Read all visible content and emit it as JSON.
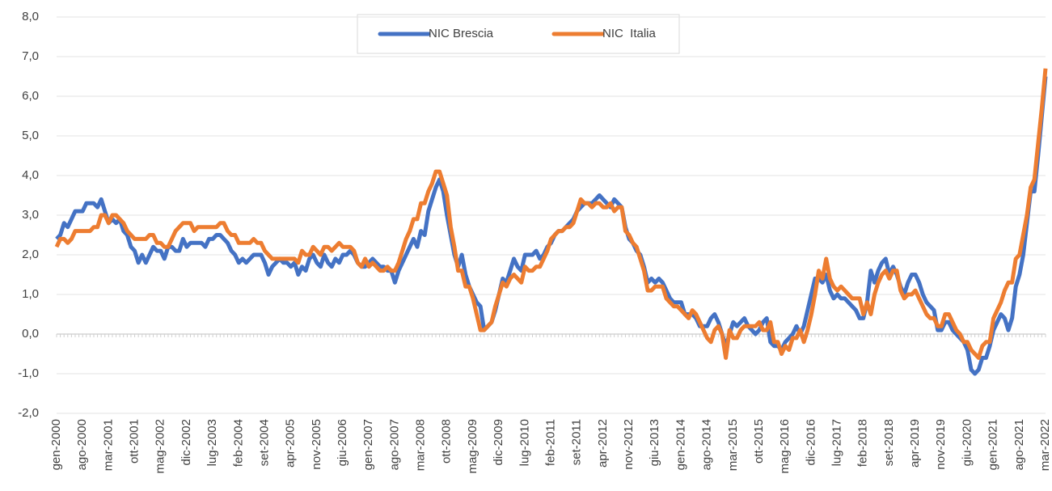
{
  "chart_data": {
    "type": "line",
    "categories": [
      "gen-2000",
      null,
      null,
      null,
      null,
      null,
      null,
      "ago-2000",
      null,
      null,
      null,
      null,
      null,
      null,
      "mar-2001",
      null,
      null,
      null,
      null,
      null,
      null,
      "ott-2001",
      null,
      null,
      null,
      null,
      null,
      null,
      "mag-2002",
      null,
      null,
      null,
      null,
      null,
      null,
      "dic-2002",
      null,
      null,
      null,
      null,
      null,
      null,
      "lug-2003",
      null,
      null,
      null,
      null,
      null,
      null,
      "feb-2004",
      null,
      null,
      null,
      null,
      null,
      null,
      "set-2004",
      null,
      null,
      null,
      null,
      null,
      null,
      "apr-2005",
      null,
      null,
      null,
      null,
      null,
      null,
      "nov-2005",
      null,
      null,
      null,
      null,
      null,
      null,
      "giu-2006",
      null,
      null,
      null,
      null,
      null,
      null,
      "gen-2007",
      null,
      null,
      null,
      null,
      null,
      null,
      "ago-2007",
      null,
      null,
      null,
      null,
      null,
      null,
      "mar-2008",
      null,
      null,
      null,
      null,
      null,
      null,
      "ott-2008",
      null,
      null,
      null,
      null,
      null,
      null,
      "mag-2009",
      null,
      null,
      null,
      null,
      null,
      null,
      "dic-2009",
      null,
      null,
      null,
      null,
      null,
      null,
      "lug-2010",
      null,
      null,
      null,
      null,
      null,
      null,
      "feb-2011",
      null,
      null,
      null,
      null,
      null,
      null,
      "set-2011",
      null,
      null,
      null,
      null,
      null,
      null,
      "apr-2012",
      null,
      null,
      null,
      null,
      null,
      null,
      "nov-2012",
      null,
      null,
      null,
      null,
      null,
      null,
      "giu-2013",
      null,
      null,
      null,
      null,
      null,
      null,
      "gen-2014",
      null,
      null,
      null,
      null,
      null,
      null,
      "ago-2014",
      null,
      null,
      null,
      null,
      null,
      null,
      "mar-2015",
      null,
      null,
      null,
      null,
      null,
      null,
      "ott-2015",
      null,
      null,
      null,
      null,
      null,
      null,
      "mag-2016",
      null,
      null,
      null,
      null,
      null,
      null,
      "dic-2016",
      null,
      null,
      null,
      null,
      null,
      null,
      "lug-2017",
      null,
      null,
      null,
      null,
      null,
      null,
      "feb-2018",
      null,
      null,
      null,
      null,
      null,
      null,
      "set-2018",
      null,
      null,
      null,
      null,
      null,
      null,
      "apr-2019",
      null,
      null,
      null,
      null,
      null,
      null,
      "nov-2019",
      null,
      null,
      null,
      null,
      null,
      null,
      "giu-2020",
      null,
      null,
      null,
      null,
      null,
      null,
      "gen-2021",
      null,
      null,
      null,
      null,
      null,
      null,
      "ago-2021",
      null,
      null,
      null,
      null,
      null,
      null,
      "mar-2022"
    ],
    "series": [
      {
        "name": "NIC Brescia",
        "color": "#4472c4",
        "values": [
          2.4,
          2.5,
          2.8,
          2.7,
          2.9,
          3.1,
          3.1,
          3.1,
          3.3,
          3.3,
          3.3,
          3.2,
          3.4,
          3.1,
          2.8,
          2.9,
          2.8,
          2.9,
          2.6,
          2.5,
          2.2,
          2.1,
          1.8,
          2.0,
          1.8,
          2.0,
          2.2,
          2.1,
          2.1,
          1.9,
          2.2,
          2.2,
          2.1,
          2.1,
          2.4,
          2.2,
          2.3,
          2.3,
          2.3,
          2.3,
          2.2,
          2.4,
          2.4,
          2.5,
          2.5,
          2.4,
          2.3,
          2.1,
          2.0,
          1.8,
          1.9,
          1.8,
          1.9,
          2.0,
          2.0,
          2.0,
          1.8,
          1.5,
          1.7,
          1.8,
          1.9,
          1.8,
          1.8,
          1.7,
          1.8,
          1.5,
          1.7,
          1.6,
          1.9,
          2.0,
          1.8,
          1.7,
          2.0,
          1.8,
          1.7,
          1.9,
          1.8,
          2.0,
          2.0,
          2.1,
          2.0,
          1.8,
          1.7,
          1.7,
          1.8,
          1.9,
          1.8,
          1.7,
          1.7,
          1.6,
          1.6,
          1.3,
          1.6,
          1.8,
          2.0,
          2.2,
          2.4,
          2.2,
          2.6,
          2.5,
          3.1,
          3.4,
          3.7,
          3.9,
          3.6,
          3.0,
          2.5,
          2.0,
          1.7,
          2.0,
          1.5,
          1.2,
          1.0,
          0.8,
          0.7,
          0.1,
          0.2,
          0.3,
          0.6,
          1.0,
          1.4,
          1.3,
          1.6,
          1.9,
          1.7,
          1.6,
          2.0,
          2.0,
          2.0,
          2.1,
          1.9,
          2.0,
          2.2,
          2.3,
          2.5,
          2.6,
          2.6,
          2.7,
          2.8,
          2.9,
          3.1,
          3.2,
          3.3,
          3.3,
          3.3,
          3.4,
          3.5,
          3.4,
          3.3,
          3.2,
          3.4,
          3.3,
          3.2,
          2.7,
          2.4,
          2.3,
          2.1,
          2.0,
          1.7,
          1.3,
          1.4,
          1.3,
          1.4,
          1.3,
          1.1,
          0.9,
          0.8,
          0.8,
          0.8,
          0.5,
          0.5,
          0.5,
          0.4,
          0.2,
          0.2,
          0.2,
          0.4,
          0.5,
          0.3,
          0.0,
          -0.3,
          0.0,
          0.3,
          0.2,
          0.3,
          0.4,
          0.2,
          0.1,
          0.0,
          0.1,
          0.3,
          0.4,
          -0.2,
          -0.3,
          -0.3,
          -0.4,
          -0.2,
          -0.1,
          0.0,
          0.2,
          0.0,
          0.2,
          0.6,
          1.0,
          1.4,
          1.4,
          1.3,
          1.5,
          1.1,
          0.9,
          1.0,
          0.9,
          0.9,
          0.8,
          0.7,
          0.6,
          0.4,
          0.4,
          0.8,
          1.6,
          1.3,
          1.6,
          1.8,
          1.9,
          1.5,
          1.7,
          1.5,
          1.2,
          1.0,
          1.3,
          1.5,
          1.5,
          1.3,
          1.0,
          0.8,
          0.7,
          0.6,
          0.1,
          0.1,
          0.3,
          0.3,
          0.1,
          0.0,
          -0.1,
          -0.2,
          -0.4,
          -0.9,
          -1.0,
          -0.9,
          -0.6,
          -0.6,
          -0.3,
          0.1,
          0.3,
          0.5,
          0.4,
          0.1,
          0.4,
          1.2,
          1.5,
          2.0,
          2.8,
          3.6,
          3.6,
          4.5,
          5.5,
          6.5
        ]
      },
      {
        "name": "NIC  Italia",
        "color": "#ed7d31",
        "values": [
          2.2,
          2.4,
          2.4,
          2.3,
          2.4,
          2.6,
          2.6,
          2.6,
          2.6,
          2.6,
          2.7,
          2.7,
          3.0,
          3.0,
          2.8,
          3.0,
          3.0,
          2.9,
          2.8,
          2.6,
          2.5,
          2.4,
          2.4,
          2.4,
          2.4,
          2.5,
          2.5,
          2.3,
          2.3,
          2.2,
          2.2,
          2.4,
          2.6,
          2.7,
          2.8,
          2.8,
          2.8,
          2.6,
          2.7,
          2.7,
          2.7,
          2.7,
          2.7,
          2.7,
          2.8,
          2.8,
          2.6,
          2.5,
          2.5,
          2.3,
          2.3,
          2.3,
          2.3,
          2.4,
          2.3,
          2.3,
          2.1,
          2.0,
          1.9,
          1.9,
          1.9,
          1.9,
          1.9,
          1.9,
          1.9,
          1.8,
          2.1,
          2.0,
          2.0,
          2.2,
          2.1,
          2.0,
          2.2,
          2.2,
          2.1,
          2.2,
          2.3,
          2.2,
          2.2,
          2.2,
          2.1,
          1.8,
          1.7,
          1.9,
          1.7,
          1.8,
          1.7,
          1.6,
          1.6,
          1.7,
          1.6,
          1.6,
          1.8,
          2.1,
          2.4,
          2.6,
          2.9,
          2.9,
          3.3,
          3.3,
          3.6,
          3.8,
          4.1,
          4.1,
          3.8,
          3.5,
          2.7,
          2.2,
          1.6,
          1.6,
          1.2,
          1.2,
          0.9,
          0.5,
          0.1,
          0.1,
          0.2,
          0.3,
          0.7,
          1.0,
          1.3,
          1.2,
          1.4,
          1.5,
          1.4,
          1.3,
          1.7,
          1.6,
          1.6,
          1.7,
          1.7,
          1.9,
          2.1,
          2.4,
          2.5,
          2.6,
          2.6,
          2.7,
          2.7,
          2.8,
          3.1,
          3.4,
          3.3,
          3.3,
          3.2,
          3.3,
          3.3,
          3.2,
          3.2,
          3.3,
          3.1,
          3.2,
          3.2,
          2.6,
          2.5,
          2.3,
          2.2,
          1.9,
          1.6,
          1.1,
          1.1,
          1.2,
          1.2,
          1.2,
          0.9,
          0.8,
          0.7,
          0.7,
          0.6,
          0.5,
          0.4,
          0.6,
          0.5,
          0.3,
          0.1,
          -0.1,
          -0.2,
          0.1,
          0.2,
          0.0,
          -0.6,
          0.1,
          -0.1,
          -0.1,
          0.1,
          0.2,
          0.2,
          0.2,
          0.2,
          0.3,
          0.1,
          0.1,
          0.3,
          -0.2,
          -0.2,
          -0.5,
          -0.3,
          -0.4,
          -0.1,
          -0.1,
          0.1,
          -0.2,
          0.1,
          0.5,
          1.0,
          1.6,
          1.4,
          1.9,
          1.4,
          1.2,
          1.1,
          1.2,
          1.1,
          1.0,
          0.9,
          0.9,
          0.9,
          0.5,
          0.8,
          0.5,
          1.0,
          1.3,
          1.5,
          1.6,
          1.4,
          1.6,
          1.6,
          1.1,
          0.9,
          1.0,
          1.0,
          1.1,
          0.9,
          0.7,
          0.5,
          0.4,
          0.4,
          0.2,
          0.2,
          0.5,
          0.5,
          0.3,
          0.1,
          0.0,
          -0.2,
          -0.2,
          -0.4,
          -0.5,
          -0.6,
          -0.3,
          -0.2,
          -0.2,
          0.4,
          0.6,
          0.8,
          1.1,
          1.3,
          1.3,
          1.9,
          2.0,
          2.5,
          3.0,
          3.7,
          3.9,
          4.8,
          5.7,
          6.7
        ]
      }
    ],
    "ylim": [
      -2,
      8
    ],
    "yticks": [
      {
        "value": -2,
        "label": "-2,0"
      },
      {
        "value": -1,
        "label": "-1,0"
      },
      {
        "value": 0,
        "label": "0,0"
      },
      {
        "value": 1,
        "label": "1,0"
      },
      {
        "value": 2,
        "label": "2,0"
      },
      {
        "value": 3,
        "label": "3,0"
      },
      {
        "value": 4,
        "label": "4,0"
      },
      {
        "value": 5,
        "label": "5,0"
      },
      {
        "value": 6,
        "label": "6,0"
      },
      {
        "value": 7,
        "label": "7,0"
      },
      {
        "value": 8,
        "label": "8,0"
      }
    ],
    "grid": true,
    "legend": "top"
  }
}
